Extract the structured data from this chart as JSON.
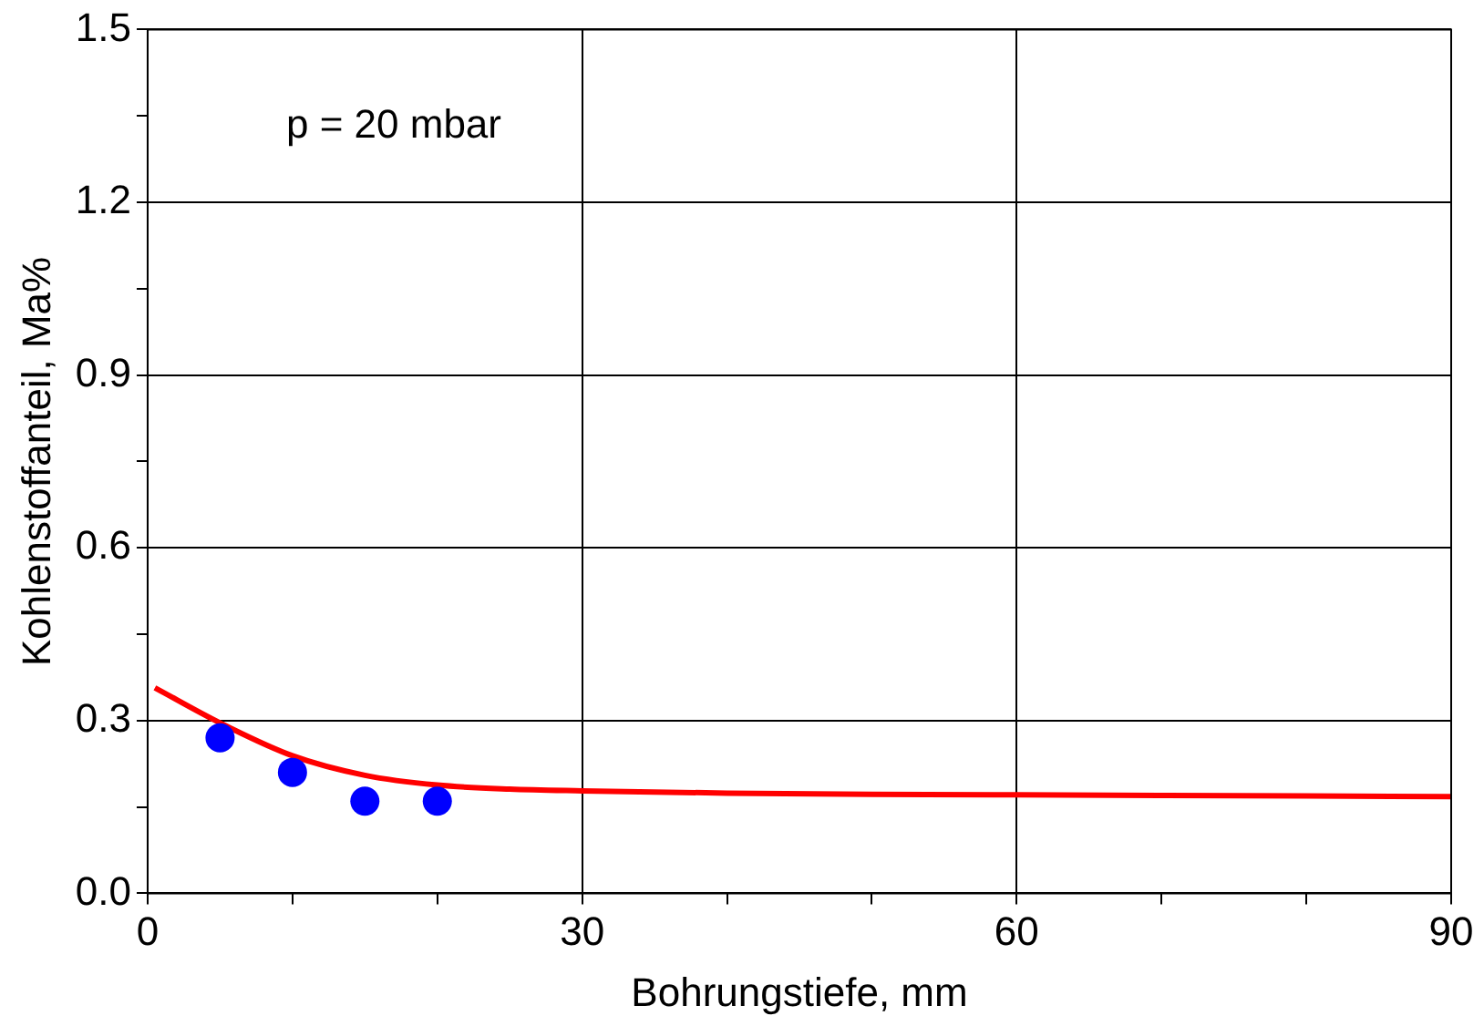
{
  "chart_data": {
    "type": "scatter",
    "xlabel": "Bohrungstiefe, mm",
    "ylabel": "Kohlenstoffanteil, Ma%",
    "xlim": [
      0,
      90
    ],
    "ylim": [
      0,
      1.5
    ],
    "xticks": [
      0,
      {
        "value": 10,
        "label": null
      },
      {
        "value": 20,
        "label": null
      },
      30,
      {
        "value": 40,
        "label": null
      },
      {
        "value": 50,
        "label": null
      },
      60,
      {
        "value": 70,
        "label": null
      },
      {
        "value": 80,
        "label": null
      },
      90
    ],
    "yticks": [
      {
        "value": 0,
        "label": "0.0"
      },
      {
        "value": 0.15,
        "label": null
      },
      {
        "value": 0.3,
        "label": "0.3"
      },
      {
        "value": 0.45,
        "label": null
      },
      {
        "value": 0.6,
        "label": "0.6"
      },
      {
        "value": 0.75,
        "label": null
      },
      {
        "value": 0.9,
        "label": "0.9"
      },
      {
        "value": 1.05,
        "label": null
      },
      {
        "value": 1.2,
        "label": "1.2"
      },
      {
        "value": 1.35,
        "label": null
      },
      {
        "value": 1.5,
        "label": "1.5"
      }
    ],
    "grid": true,
    "legend": false,
    "marker": "circle",
    "annotations": [
      "p = 20 mbar"
    ],
    "series": [
      {
        "color": "#0000ff",
        "x": [
          5,
          10,
          15,
          20
        ],
        "values": [
          0.27,
          0.21,
          0.16,
          0.16
        ]
      },
      {
        "type": "line",
        "color": "#ff0000",
        "marker": "none",
        "x": [
          0.5,
          5,
          10,
          15,
          20,
          25,
          30,
          40,
          50,
          60,
          70,
          80,
          90
        ],
        "values": [
          0.357,
          0.296,
          0.239,
          0.205,
          0.188,
          0.181,
          0.178,
          0.174,
          0.172,
          0.171,
          0.17,
          0.169,
          0.168
        ]
      }
    ]
  }
}
